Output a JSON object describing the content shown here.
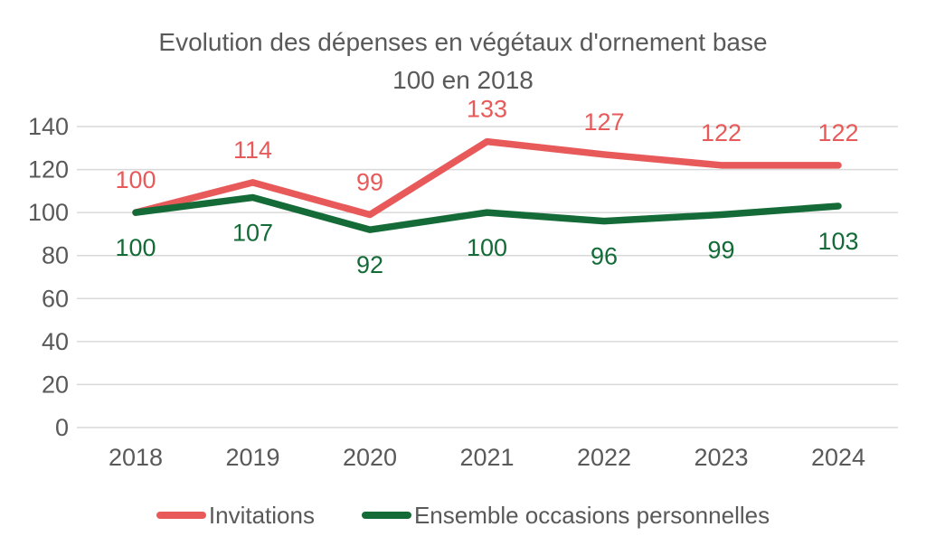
{
  "title": {
    "line1": "Evolution des dépenses en végétaux d'ornement base",
    "line2": "100 en 2018"
  },
  "chart_data": {
    "type": "line",
    "categories": [
      "2018",
      "2019",
      "2020",
      "2021",
      "2022",
      "2023",
      "2024"
    ],
    "series": [
      {
        "name": "Invitations",
        "color": "#E85A5A",
        "values": [
          100,
          114,
          99,
          133,
          127,
          122,
          122
        ],
        "label_side": "above"
      },
      {
        "name": "Ensemble occasions personnelles",
        "color": "#156B38",
        "values": [
          100,
          107,
          92,
          100,
          96,
          99,
          103
        ],
        "label_side": "below"
      }
    ],
    "title": "Evolution des dépenses en végétaux d'ornement base 100 en 2018",
    "xlabel": "",
    "ylabel": "",
    "ylim": [
      0,
      140
    ],
    "ytick_step": 20,
    "yticks": [
      0,
      20,
      40,
      60,
      80,
      100,
      120,
      140
    ],
    "grid": true,
    "legend_position": "bottom",
    "data_labels": true
  },
  "style": {
    "axis_text_color": "#595959",
    "gridline_color": "#D9D9D9",
    "background_color": "#FFFFFF"
  }
}
